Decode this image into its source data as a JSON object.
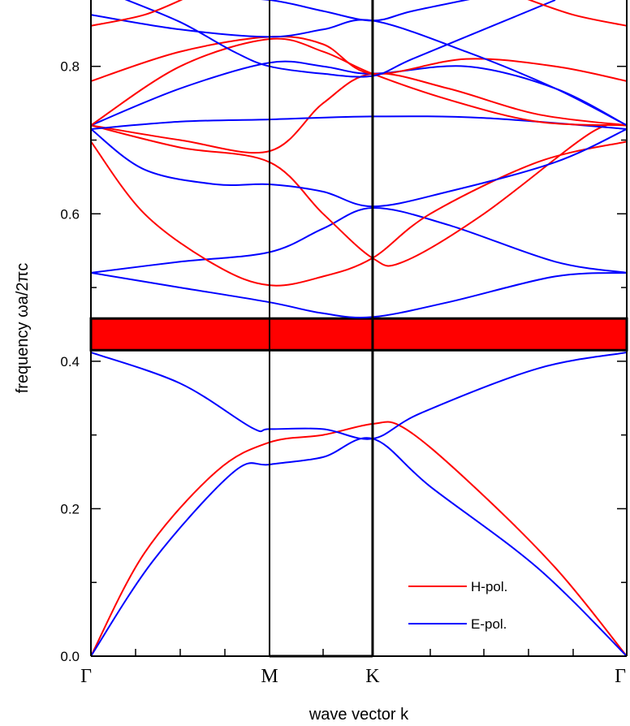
{
  "chart_data": {
    "type": "line",
    "title": "",
    "xlabel": "wave vector k",
    "ylabel": "frequency ωa/2πc",
    "ylim": [
      0,
      0.89
    ],
    "xlim": [
      0,
      3
    ],
    "x_ticks": [
      {
        "pos": 0,
        "label": "Γ"
      },
      {
        "pos": 1,
        "label": "M"
      },
      {
        "pos": 1.577,
        "label": "K"
      },
      {
        "pos": 3,
        "label": "Γ"
      }
    ],
    "y_ticks": [
      {
        "value": 0.0,
        "label": "0.0"
      },
      {
        "value": 0.2,
        "label": "0.2"
      },
      {
        "value": 0.4,
        "label": "0.4"
      },
      {
        "value": 0.6,
        "label": "0.6"
      },
      {
        "value": 0.8,
        "label": "0.8"
      }
    ],
    "band_gap": {
      "from": 0.415,
      "to": 0.458,
      "color": "#ff0000"
    },
    "colors": {
      "H": "#ff0000",
      "E": "#0000ff"
    },
    "legend": {
      "position": "bottom-right",
      "entries": [
        {
          "label": "H-pol.",
          "series": "H"
        },
        {
          "label": "E-pol.",
          "series": "E"
        }
      ]
    },
    "series": [
      {
        "pol": "H",
        "points": [
          [
            0,
            0
          ],
          [
            0.3,
            0.14
          ],
          [
            0.7,
            0.25
          ],
          [
            1,
            0.29
          ],
          [
            1.3,
            0.3
          ],
          [
            1.577,
            0.315
          ],
          [
            1.75,
            0.31
          ],
          [
            2.1,
            0.24
          ],
          [
            2.6,
            0.12
          ],
          [
            3,
            0
          ]
        ]
      },
      {
        "pol": "E",
        "points": [
          [
            0,
            0
          ],
          [
            0.35,
            0.13
          ],
          [
            0.8,
            0.25
          ],
          [
            1,
            0.26
          ],
          [
            1.3,
            0.27
          ],
          [
            1.577,
            0.295
          ],
          [
            1.9,
            0.23
          ],
          [
            2.5,
            0.12
          ],
          [
            3,
            0
          ]
        ]
      },
      {
        "pol": "E",
        "points": [
          [
            0,
            0.412
          ],
          [
            0.5,
            0.37
          ],
          [
            0.9,
            0.31
          ],
          [
            1,
            0.308
          ],
          [
            1.3,
            0.308
          ],
          [
            1.577,
            0.295
          ],
          [
            1.85,
            0.33
          ],
          [
            2.5,
            0.39
          ],
          [
            3,
            0.412
          ]
        ]
      },
      {
        "pol": "E",
        "points": [
          [
            0,
            0.52
          ],
          [
            0.5,
            0.5
          ],
          [
            1,
            0.48
          ],
          [
            1.3,
            0.465
          ],
          [
            1.577,
            0.46
          ],
          [
            2.0,
            0.48
          ],
          [
            2.6,
            0.515
          ],
          [
            3,
            0.52
          ]
        ]
      },
      {
        "pol": "E",
        "points": [
          [
            0,
            0.52
          ],
          [
            0.5,
            0.535
          ],
          [
            1,
            0.548
          ],
          [
            1.3,
            0.58
          ],
          [
            1.577,
            0.608
          ],
          [
            2.0,
            0.585
          ],
          [
            2.6,
            0.535
          ],
          [
            3,
            0.52
          ]
        ]
      },
      {
        "pol": "H",
        "points": [
          [
            0,
            0.698
          ],
          [
            0.3,
            0.6
          ],
          [
            0.7,
            0.53
          ],
          [
            1,
            0.503
          ],
          [
            1.3,
            0.515
          ],
          [
            1.577,
            0.54
          ],
          [
            1.9,
            0.6
          ],
          [
            2.5,
            0.67
          ],
          [
            3,
            0.698
          ]
        ]
      },
      {
        "pol": "H",
        "points": [
          [
            0,
            0.72
          ],
          [
            0.5,
            0.69
          ],
          [
            1,
            0.67
          ],
          [
            1.3,
            0.6
          ],
          [
            1.577,
            0.54
          ],
          [
            1.75,
            0.535
          ],
          [
            2.2,
            0.6
          ],
          [
            2.8,
            0.71
          ],
          [
            3,
            0.72
          ]
        ]
      },
      {
        "pol": "H",
        "points": [
          [
            0,
            0.72
          ],
          [
            0.5,
            0.7
          ],
          [
            1,
            0.685
          ],
          [
            1.3,
            0.75
          ],
          [
            1.577,
            0.79
          ],
          [
            2.0,
            0.77
          ],
          [
            2.5,
            0.735
          ],
          [
            3,
            0.72
          ]
        ]
      },
      {
        "pol": "E",
        "points": [
          [
            0,
            0.715
          ],
          [
            0.3,
            0.66
          ],
          [
            0.7,
            0.64
          ],
          [
            1,
            0.64
          ],
          [
            1.3,
            0.63
          ],
          [
            1.577,
            0.61
          ],
          [
            2.0,
            0.63
          ],
          [
            2.6,
            0.67
          ],
          [
            3,
            0.715
          ]
        ]
      },
      {
        "pol": "E",
        "points": [
          [
            0,
            0.715
          ],
          [
            0.5,
            0.725
          ],
          [
            1,
            0.728
          ],
          [
            1.577,
            0.732
          ],
          [
            2.2,
            0.73
          ],
          [
            3,
            0.715
          ]
        ]
      },
      {
        "pol": "E",
        "points": [
          [
            0,
            0.72
          ],
          [
            0.5,
            0.77
          ],
          [
            1,
            0.805
          ],
          [
            1.3,
            0.8
          ],
          [
            1.577,
            0.79
          ],
          [
            2.1,
            0.8
          ],
          [
            2.6,
            0.77
          ],
          [
            3,
            0.72
          ]
        ]
      },
      {
        "pol": "H",
        "points": [
          [
            0,
            0.78
          ],
          [
            0.5,
            0.82
          ],
          [
            1,
            0.84
          ],
          [
            1.3,
            0.83
          ],
          [
            1.577,
            0.79
          ],
          [
            2.1,
            0.81
          ],
          [
            2.6,
            0.8
          ],
          [
            3,
            0.78
          ]
        ]
      },
      {
        "pol": "H",
        "points": [
          [
            0,
            0.72
          ],
          [
            0.5,
            0.8
          ],
          [
            1,
            0.837
          ],
          [
            1.3,
            0.82
          ],
          [
            1.577,
            0.79
          ],
          [
            2.0,
            0.755
          ],
          [
            2.5,
            0.725
          ],
          [
            3,
            0.72
          ]
        ]
      },
      {
        "pol": "E",
        "points": [
          [
            0,
            0.87
          ],
          [
            0.5,
            0.85
          ],
          [
            1,
            0.84
          ],
          [
            1.3,
            0.85
          ],
          [
            1.577,
            0.862
          ],
          [
            2.1,
            0.82
          ],
          [
            2.6,
            0.77
          ],
          [
            3,
            0.72
          ]
        ]
      },
      {
        "pol": "E",
        "points": [
          [
            0.15,
            0.895
          ],
          [
            0.5,
            0.86
          ],
          [
            0.8,
            0.82
          ],
          [
            1,
            0.8
          ],
          [
            1.3,
            0.79
          ],
          [
            1.577,
            0.787
          ],
          [
            1.8,
            0.81
          ],
          [
            2.3,
            0.86
          ],
          [
            2.6,
            0.89
          ]
        ]
      },
      {
        "pol": "E",
        "points": [
          [
            0.6,
            0.895
          ],
          [
            1,
            0.89
          ],
          [
            1.3,
            0.875
          ],
          [
            1.577,
            0.862
          ],
          [
            1.8,
            0.875
          ],
          [
            2.2,
            0.895
          ]
        ]
      },
      {
        "pol": "H",
        "points": [
          [
            0,
            0.855
          ],
          [
            0.3,
            0.87
          ],
          [
            0.55,
            0.895
          ]
        ]
      },
      {
        "pol": "H",
        "points": [
          [
            2.4,
            0.895
          ],
          [
            2.7,
            0.87
          ],
          [
            3,
            0.855
          ]
        ]
      }
    ]
  }
}
